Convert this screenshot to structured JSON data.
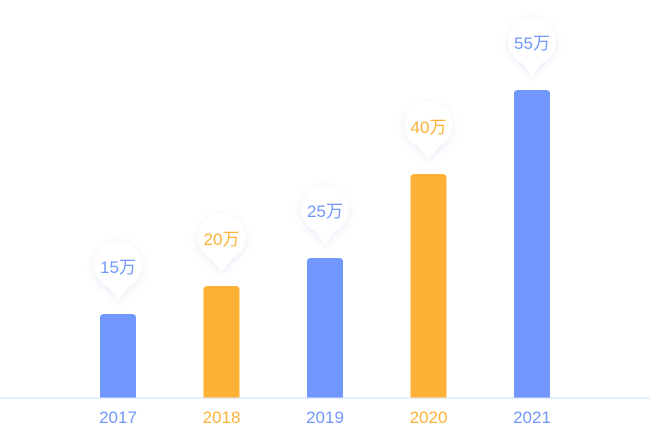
{
  "chart_data": {
    "type": "bar",
    "categories": [
      "2017",
      "2018",
      "2019",
      "2020",
      "2021"
    ],
    "values": [
      15,
      20,
      25,
      40,
      55
    ],
    "data_labels": [
      "15万",
      "20万",
      "25万",
      "40万",
      "55万"
    ],
    "title": "",
    "xlabel": "",
    "ylabel": "",
    "grid": false,
    "bar_colors": [
      "#7097fc",
      "#feb137",
      "#7097fc",
      "#feb137",
      "#7097fc"
    ],
    "label_colors": [
      "#7097fc",
      "#feb137",
      "#7097fc",
      "#feb137",
      "#7097fc"
    ]
  },
  "colors": {
    "axis_line": "#cfe0fb",
    "bubble_fill": "#ffffff",
    "bubble_shadow": "#e9eef8"
  }
}
